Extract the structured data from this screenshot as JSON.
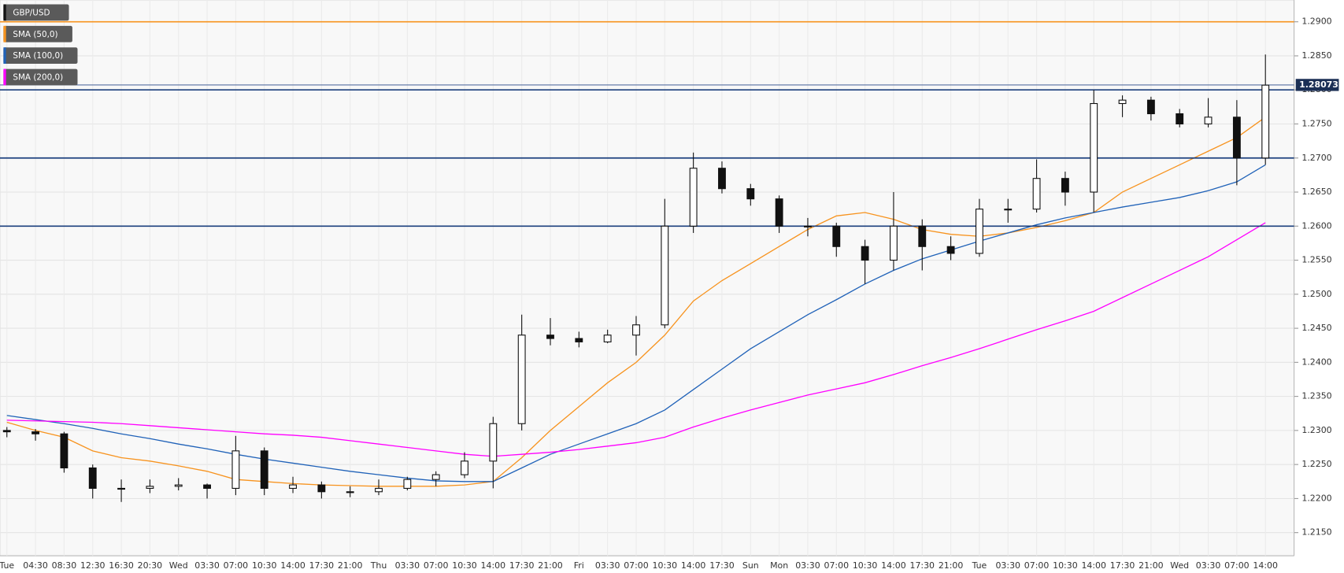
{
  "chart_data": {
    "type": "candlestick",
    "categories": [
      "Tue",
      "04:30",
      "08:30",
      "12:30",
      "16:30",
      "20:30",
      "Wed",
      "03:30",
      "07:00",
      "10:30",
      "14:00",
      "17:30",
      "21:00",
      "Thu",
      "03:30",
      "07:00",
      "10:30",
      "14:00",
      "17:30",
      "21:00",
      "Fri",
      "03:30",
      "07:00",
      "10:30",
      "14:00",
      "17:30",
      "Sun",
      "Mon",
      "03:30",
      "07:00",
      "10:30",
      "14:00",
      "17:30",
      "21:00",
      "Tue",
      "03:30",
      "07:00",
      "10:30",
      "14:00",
      "17:30",
      "21:00",
      "Wed",
      "03:30",
      "07:00",
      "14:00"
    ],
    "candles": {
      "name": "GBP/USD",
      "open": [
        1.23,
        1.2298,
        1.2295,
        1.2245,
        1.2215,
        1.2215,
        1.2218,
        1.222,
        1.2215,
        1.227,
        1.2215,
        1.222,
        1.221,
        1.221,
        1.2215,
        1.2228,
        1.2235,
        1.2255,
        1.231,
        1.244,
        1.2435,
        1.243,
        1.244,
        1.2455,
        1.26,
        1.2685,
        1.2655,
        1.264,
        1.26,
        1.26,
        1.257,
        1.255,
        1.26,
        1.257,
        1.256,
        1.2625,
        1.2625,
        1.267,
        1.265,
        1.278,
        1.2785,
        1.2765,
        1.275,
        1.276,
        1.27
      ],
      "high": [
        1.2305,
        1.2302,
        1.2298,
        1.225,
        1.2228,
        1.2228,
        1.223,
        1.2222,
        1.2292,
        1.2275,
        1.2232,
        1.2225,
        1.2218,
        1.2228,
        1.2232,
        1.224,
        1.2268,
        1.232,
        1.247,
        1.2465,
        1.2445,
        1.2448,
        1.2468,
        1.264,
        1.2708,
        1.2695,
        1.2662,
        1.2645,
        1.2612,
        1.2605,
        1.258,
        1.265,
        1.261,
        1.2585,
        1.264,
        1.264,
        1.2698,
        1.268,
        1.28,
        1.2792,
        1.279,
        1.2772,
        1.2788,
        1.2785,
        1.2852
      ],
      "low": [
        1.229,
        1.2285,
        1.2238,
        1.22,
        1.2195,
        1.2208,
        1.2212,
        1.22,
        1.2205,
        1.2205,
        1.2208,
        1.22,
        1.2202,
        1.2205,
        1.2212,
        1.2218,
        1.223,
        1.2215,
        1.23,
        1.2425,
        1.2422,
        1.2428,
        1.241,
        1.245,
        1.259,
        1.2648,
        1.263,
        1.259,
        1.2585,
        1.2555,
        1.2515,
        1.2535,
        1.2535,
        1.255,
        1.2555,
        1.2605,
        1.262,
        1.263,
        1.262,
        1.276,
        1.2755,
        1.2745,
        1.2745,
        1.266,
        1.269
      ],
      "close": [
        1.2298,
        1.2295,
        1.2245,
        1.2215,
        1.2215,
        1.2218,
        1.222,
        1.2215,
        1.227,
        1.2215,
        1.222,
        1.221,
        1.221,
        1.2215,
        1.2228,
        1.2235,
        1.2255,
        1.231,
        1.244,
        1.2435,
        1.243,
        1.244,
        1.2455,
        1.26,
        1.2685,
        1.2655,
        1.264,
        1.26,
        1.26,
        1.257,
        1.255,
        1.26,
        1.257,
        1.256,
        1.2625,
        1.2625,
        1.267,
        1.265,
        1.278,
        1.2785,
        1.2765,
        1.275,
        1.276,
        1.27,
        1.2807
      ]
    },
    "series": [
      {
        "name": "SMA (50,0)",
        "color": "#f7931e",
        "values": [
          1.2312,
          1.23,
          1.229,
          1.227,
          1.226,
          1.2255,
          1.2248,
          1.224,
          1.2228,
          1.2225,
          1.2222,
          1.222,
          1.2219,
          1.2218,
          1.2218,
          1.2218,
          1.222,
          1.2225,
          1.226,
          1.23,
          1.2335,
          1.237,
          1.24,
          1.244,
          1.249,
          1.252,
          1.2545,
          1.257,
          1.2595,
          1.2615,
          1.262,
          1.261,
          1.2595,
          1.2588,
          1.2585,
          1.259,
          1.2598,
          1.2608,
          1.262,
          1.265,
          1.267,
          1.269,
          1.271,
          1.273,
          1.276
        ]
      },
      {
        "name": "SMA (100,0)",
        "color": "#2062b8",
        "values": [
          1.2322,
          1.2316,
          1.231,
          1.2303,
          1.2295,
          1.2288,
          1.228,
          1.2273,
          1.2265,
          1.2258,
          1.2252,
          1.2246,
          1.224,
          1.2235,
          1.223,
          1.2226,
          1.2225,
          1.2225,
          1.2245,
          1.2265,
          1.228,
          1.2295,
          1.231,
          1.233,
          1.236,
          1.239,
          1.242,
          1.2445,
          1.247,
          1.2492,
          1.2515,
          1.2535,
          1.2552,
          1.2565,
          1.2578,
          1.259,
          1.2602,
          1.2612,
          1.262,
          1.2628,
          1.2635,
          1.2642,
          1.2652,
          1.2665,
          1.269
        ]
      },
      {
        "name": "SMA (200,0)",
        "color": "#ff00ff",
        "values": [
          1.2315,
          1.2314,
          1.2313,
          1.2312,
          1.231,
          1.2307,
          1.2304,
          1.2301,
          1.2298,
          1.2295,
          1.2293,
          1.229,
          1.2285,
          1.228,
          1.2275,
          1.227,
          1.2265,
          1.2262,
          1.2265,
          1.2268,
          1.2272,
          1.2277,
          1.2282,
          1.229,
          1.2305,
          1.2318,
          1.233,
          1.2341,
          1.2352,
          1.2361,
          1.237,
          1.2382,
          1.2395,
          1.2407,
          1.242,
          1.2434,
          1.2448,
          1.2461,
          1.2475,
          1.2495,
          1.2515,
          1.2535,
          1.2555,
          1.258,
          1.2605
        ]
      }
    ],
    "hlines": [
      {
        "value": 1.29,
        "color": "#f7931e"
      },
      {
        "value": 1.28,
        "color": "#1b3f7d"
      },
      {
        "value": 1.27,
        "color": "#1b3f7d"
      },
      {
        "value": 1.26,
        "color": "#1b3f7d"
      }
    ],
    "last_price": {
      "value": 1.28073,
      "label": "1.28073"
    },
    "ylim": [
      1.2116,
      1.2932
    ],
    "yticks": [
      {
        "value": 1.215,
        "label": "1.2150"
      },
      {
        "value": 1.22,
        "label": "1.2200"
      },
      {
        "value": 1.225,
        "label": "1.2250"
      },
      {
        "value": 1.23,
        "label": "1.2300"
      },
      {
        "value": 1.235,
        "label": "1.2350"
      },
      {
        "value": 1.24,
        "label": "1.2400"
      },
      {
        "value": 1.245,
        "label": "1.2450"
      },
      {
        "value": 1.25,
        "label": "1.2500"
      },
      {
        "value": 1.255,
        "label": "1.2550"
      },
      {
        "value": 1.26,
        "label": "1.2600"
      },
      {
        "value": 1.265,
        "label": "1.2650"
      },
      {
        "value": 1.27,
        "label": "1.2700"
      },
      {
        "value": 1.275,
        "label": "1.2750"
      },
      {
        "value": 1.28,
        "label": "1.2800"
      },
      {
        "value": 1.285,
        "label": "1.2850"
      },
      {
        "value": 1.29,
        "label": "1.2900"
      }
    ],
    "grid": true
  }
}
